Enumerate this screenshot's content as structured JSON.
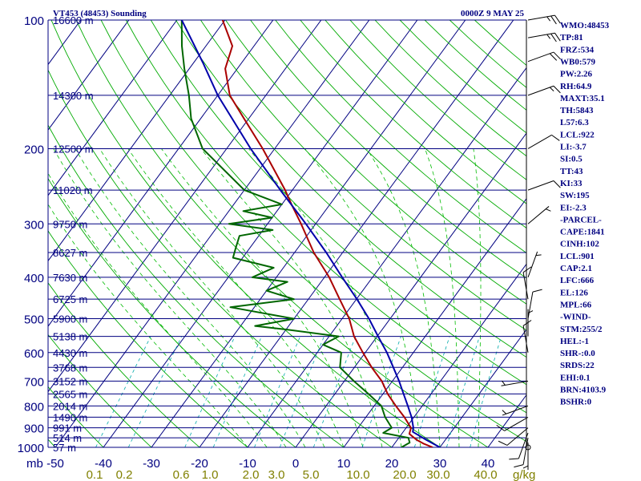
{
  "header": {
    "station": "VT453 (48453) Sounding",
    "time": "0000Z  9 MAY 25"
  },
  "colors": {
    "isobar": "#000080",
    "isotherm": "#000080",
    "dry_adiabat": "#00aa00",
    "moist_adiabat": "#00bb00",
    "mixing_ratio": "#00aaaa",
    "temperature": "#aa0000",
    "dewpoint": "#006600",
    "parcel": "#0000aa",
    "label": "#000080",
    "temp_tick": "#000080",
    "mixratio_tick": "#808000"
  },
  "chart_data": {
    "type": "line",
    "title": "VT453 (48453) Sounding",
    "xlabel": "",
    "ylabel": "mb",
    "pressure_range_mb": [
      1000,
      100
    ],
    "temperature_range_c": [
      -50,
      50
    ],
    "skewed": true,
    "pressure_levels_mb": [
      100,
      200,
      300,
      400,
      500,
      600,
      700,
      800,
      900,
      1000
    ],
    "pressure_tick_labels": [
      "100",
      "200",
      "300",
      "400",
      "500",
      "600",
      "700",
      "800",
      "900",
      "1000"
    ],
    "height_labels": [
      {
        "p": 100,
        "text": "16600 m"
      },
      {
        "p": 150,
        "text": "14300 m"
      },
      {
        "p": 200,
        "text": "12500 m"
      },
      {
        "p": 250,
        "text": "11020 m"
      },
      {
        "p": 300,
        "text": "9750 m"
      },
      {
        "p": 350,
        "text": "8627 m"
      },
      {
        "p": 400,
        "text": "7630 m"
      },
      {
        "p": 450,
        "text": "6725 m"
      },
      {
        "p": 500,
        "text": "5900 m"
      },
      {
        "p": 550,
        "text": "5138 m"
      },
      {
        "p": 600,
        "text": "4430 m"
      },
      {
        "p": 650,
        "text": "3768 m"
      },
      {
        "p": 700,
        "text": "3152 m"
      },
      {
        "p": 750,
        "text": "2565 m"
      },
      {
        "p": 800,
        "text": "2014 m"
      },
      {
        "p": 850,
        "text": "1490 m"
      },
      {
        "p": 900,
        "text": "991 m"
      },
      {
        "p": 950,
        "text": "514 m"
      },
      {
        "p": 1000,
        "text": "57 m"
      }
    ],
    "temperature_ticks": [
      "-50",
      "-40",
      "-30",
      "-20",
      "-10",
      "0",
      "10",
      "20",
      "30",
      "40"
    ],
    "axis_unit_label": "mb",
    "mixing_ratio_ticks": [
      {
        "w": 0.1,
        "text": "0.1"
      },
      {
        "w": 0.2,
        "text": "0.2"
      },
      {
        "w": 0.6,
        "text": "0.6"
      },
      {
        "w": 1.0,
        "text": "1.0"
      },
      {
        "w": 2.0,
        "text": "2.0"
      },
      {
        "w": 3.0,
        "text": "3.0"
      },
      {
        "w": 5.0,
        "text": "5.0"
      },
      {
        "w": 10.0,
        "text": "10.0"
      },
      {
        "w": 20.0,
        "text": "20.0"
      },
      {
        "w": 30.0,
        "text": "30.0"
      },
      {
        "w": 40.0,
        "text": "40.0"
      }
    ],
    "mixing_ratio_unit": "g/kg",
    "series": [
      {
        "name": "",
        "kind": "temperature",
        "points": [
          {
            "p": 1000,
            "t": 28.5
          },
          {
            "p": 980,
            "t": 26.0
          },
          {
            "p": 960,
            "t": 24.0
          },
          {
            "p": 930,
            "t": 21.6
          },
          {
            "p": 900,
            "t": 21.0
          },
          {
            "p": 850,
            "t": 18.0
          },
          {
            "p": 800,
            "t": 14.5
          },
          {
            "p": 750,
            "t": 11.0
          },
          {
            "p": 700,
            "t": 7.8
          },
          {
            "p": 650,
            "t": 3.6
          },
          {
            "p": 600,
            "t": -0.5
          },
          {
            "p": 550,
            "t": -4.8
          },
          {
            "p": 500,
            "t": -8.5
          },
          {
            "p": 450,
            "t": -13.5
          },
          {
            "p": 400,
            "t": -19.0
          },
          {
            "p": 350,
            "t": -26.0
          },
          {
            "p": 300,
            "t": -33.0
          },
          {
            "p": 270,
            "t": -38.0
          },
          {
            "p": 250,
            "t": -41.5
          },
          {
            "p": 200,
            "t": -52.5
          },
          {
            "p": 170,
            "t": -61.0
          },
          {
            "p": 150,
            "t": -67.5
          },
          {
            "p": 130,
            "t": -72.5
          },
          {
            "p": 115,
            "t": -74.5
          },
          {
            "p": 100,
            "t": -80.5
          }
        ]
      },
      {
        "name": "",
        "kind": "dewpoint",
        "points": [
          {
            "p": 1000,
            "t": 22.0
          },
          {
            "p": 975,
            "t": 23.0
          },
          {
            "p": 950,
            "t": 22.0
          },
          {
            "p": 925,
            "t": 16.0
          },
          {
            "p": 900,
            "t": 17.0
          },
          {
            "p": 850,
            "t": 14.0
          },
          {
            "p": 800,
            "t": 11.5
          },
          {
            "p": 750,
            "t": 7.0
          },
          {
            "p": 700,
            "t": 2.0
          },
          {
            "p": 650,
            "t": -3.0
          },
          {
            "p": 600,
            "t": -5.0
          },
          {
            "p": 575,
            "t": -10.0
          },
          {
            "p": 550,
            "t": -8.0
          },
          {
            "p": 530,
            "t": -20.0
          },
          {
            "p": 520,
            "t": -27.0
          },
          {
            "p": 500,
            "t": -20.0
          },
          {
            "p": 470,
            "t": -35.0
          },
          {
            "p": 450,
            "t": -23.0
          },
          {
            "p": 430,
            "t": -30.0
          },
          {
            "p": 410,
            "t": -27.0
          },
          {
            "p": 400,
            "t": -35.0
          },
          {
            "p": 380,
            "t": -32.0
          },
          {
            "p": 360,
            "t": -42.0
          },
          {
            "p": 340,
            "t": -43.0
          },
          {
            "p": 320,
            "t": -44.0
          },
          {
            "p": 310,
            "t": -38.0
          },
          {
            "p": 300,
            "t": -48.0
          },
          {
            "p": 290,
            "t": -40.0
          },
          {
            "p": 280,
            "t": -47.0
          },
          {
            "p": 270,
            "t": -40.0
          },
          {
            "p": 250,
            "t": -50.0
          },
          {
            "p": 200,
            "t": -65.0
          },
          {
            "p": 170,
            "t": -72.0
          },
          {
            "p": 150,
            "t": -76.0
          },
          {
            "p": 130,
            "t": -81.0
          },
          {
            "p": 115,
            "t": -85.0
          },
          {
            "p": 100,
            "t": -89.0
          }
        ]
      },
      {
        "name": "",
        "kind": "parcel",
        "points": [
          {
            "p": 1000,
            "t": 30.0
          },
          {
            "p": 960,
            "t": 26.0
          },
          {
            "p": 920,
            "t": 22.0
          },
          {
            "p": 900,
            "t": 21.5
          },
          {
            "p": 850,
            "t": 19.5
          },
          {
            "p": 800,
            "t": 17.0
          },
          {
            "p": 750,
            "t": 14.3
          },
          {
            "p": 700,
            "t": 11.4
          },
          {
            "p": 650,
            "t": 8.1
          },
          {
            "p": 600,
            "t": 4.5
          },
          {
            "p": 550,
            "t": 0.2
          },
          {
            "p": 500,
            "t": -4.4
          },
          {
            "p": 450,
            "t": -9.9
          },
          {
            "p": 400,
            "t": -16.3
          },
          {
            "p": 350,
            "t": -23.4
          },
          {
            "p": 300,
            "t": -32.0
          },
          {
            "p": 250,
            "t": -42.5
          },
          {
            "p": 200,
            "t": -55.0
          },
          {
            "p": 150,
            "t": -70.0
          },
          {
            "p": 126,
            "t": -78.0
          },
          {
            "p": 100,
            "t": -89.0
          }
        ]
      }
    ],
    "winds": [
      {
        "p": 1000,
        "dir": 200,
        "spd": 0
      },
      {
        "p": 975,
        "dir": 180,
        "spd": 5
      },
      {
        "p": 950,
        "dir": 190,
        "spd": 10
      },
      {
        "p": 925,
        "dir": 200,
        "spd": 10
      },
      {
        "p": 900,
        "dir": 230,
        "spd": 10
      },
      {
        "p": 850,
        "dir": 240,
        "spd": 10
      },
      {
        "p": 800,
        "dir": 250,
        "spd": 5
      },
      {
        "p": 700,
        "dir": 260,
        "spd": 5
      },
      {
        "p": 600,
        "dir": 350,
        "spd": 10
      },
      {
        "p": 550,
        "dir": 0,
        "spd": 5
      },
      {
        "p": 500,
        "dir": 10,
        "spd": 10
      },
      {
        "p": 450,
        "dir": 350,
        "spd": 10
      },
      {
        "p": 400,
        "dir": 20,
        "spd": 5
      },
      {
        "p": 300,
        "dir": 50,
        "spd": 5
      },
      {
        "p": 250,
        "dir": 70,
        "spd": 10
      },
      {
        "p": 200,
        "dir": 60,
        "spd": 10
      },
      {
        "p": 150,
        "dir": 70,
        "spd": 15
      },
      {
        "p": 125,
        "dir": 70,
        "spd": 20
      },
      {
        "p": 110,
        "dir": 80,
        "spd": 25
      },
      {
        "p": 100,
        "dir": 80,
        "spd": 25
      }
    ]
  },
  "indices": [
    "WMO:48453",
    "TP:81",
    "FRZ:534",
    "WB0:579",
    "PW:2.26",
    "RH:64.9",
    "MAXT:35.1",
    "TH:5843",
    "L57:6.3",
    "LCL:922",
    "LI:-3.7",
    "SI:0.5",
    "TT:43",
    "KI:33",
    "SW:195",
    "EI:-2.3",
    "-PARCEL-",
    "CAPE:1841",
    "CINH:102",
    "LCL:901",
    "CAP:2.1",
    "LFC:666",
    "EL:126",
    "MPL:66",
    "-WIND-",
    "STM:255/2",
    "HEL:-1",
    "SHR-:0.0",
    "SRDS:22",
    "EHI:0.1",
    "BRN:4103.9",
    "BSHR:0"
  ]
}
